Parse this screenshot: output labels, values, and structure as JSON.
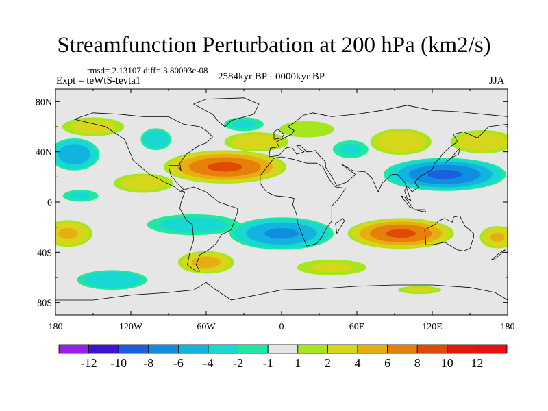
{
  "chart_data": {
    "type": "heatmap",
    "title": "Streamfunction Perturbation at 200 hPa (km2/s)",
    "stats": "rmsd= 2.13107 diff= 3.80093e-08",
    "experiment": "Expt = teWtS-tevta1",
    "period": "2584kyr BP - 0000kyr BP",
    "season": "JJA",
    "xlim": [
      -180,
      180
    ],
    "ylim": [
      -90,
      90
    ],
    "x_ticks": [
      {
        "value": -180,
        "label": "180"
      },
      {
        "value": -120,
        "label": "120W"
      },
      {
        "value": -60,
        "label": "60W"
      },
      {
        "value": 0,
        "label": "0"
      },
      {
        "value": 60,
        "label": "60E"
      },
      {
        "value": 120,
        "label": "120E"
      },
      {
        "value": 180,
        "label": "180"
      }
    ],
    "y_ticks": [
      {
        "value": 80,
        "label": "80N"
      },
      {
        "value": 40,
        "label": "40N"
      },
      {
        "value": 0,
        "label": "0"
      },
      {
        "value": -40,
        "label": "40S"
      },
      {
        "value": -80,
        "label": "80S"
      }
    ],
    "levels": [
      -12,
      -10,
      -8,
      -6,
      -4,
      -2,
      -1,
      1,
      2,
      4,
      6,
      8,
      10,
      12
    ],
    "level_labels": [
      "-12",
      "-10",
      "-8",
      "-6",
      "-4",
      "-2",
      "-1",
      "1",
      "2",
      "4",
      "6",
      "8",
      "10",
      "12"
    ],
    "colors": [
      "#9a1fef",
      "#3c14d0",
      "#1a5fe0",
      "#0f8ee0",
      "#13b3e0",
      "#18d8d2",
      "#20e8a0",
      "#e6e6e6",
      "#a6e61c",
      "#d6d61a",
      "#e6ae10",
      "#e6800a",
      "#e04a06",
      "#e01a06",
      "#e81010"
    ],
    "fields": [
      {
        "lon": -150,
        "lat": 60,
        "value": 2.5,
        "rlon": 30,
        "rlat": 9
      },
      {
        "lon": -100,
        "lat": 50,
        "value": -3.5,
        "rlon": 14,
        "rlat": 10
      },
      {
        "lon": -165,
        "lat": 38,
        "value": -5.5,
        "rlon": 22,
        "rlat": 14
      },
      {
        "lon": -45,
        "lat": 28,
        "value": 8.0,
        "rlon": 52,
        "rlat": 14
      },
      {
        "lon": -110,
        "lat": 15,
        "value": 3.0,
        "rlon": 28,
        "rlat": 9
      },
      {
        "lon": -20,
        "lat": 48,
        "value": 3.0,
        "rlon": 30,
        "rlat": 9
      },
      {
        "lon": -30,
        "lat": 62,
        "value": -2.0,
        "rlon": 20,
        "rlat": 7
      },
      {
        "lon": 20,
        "lat": 58,
        "value": 1.5,
        "rlon": 30,
        "rlat": 9
      },
      {
        "lon": 55,
        "lat": 42,
        "value": -2.0,
        "rlon": 18,
        "rlat": 9
      },
      {
        "lon": 95,
        "lat": 48,
        "value": 3.5,
        "rlon": 28,
        "rlat": 12
      },
      {
        "lon": 160,
        "lat": 48,
        "value": 3.0,
        "rlon": 30,
        "rlat": 11
      },
      {
        "lon": 130,
        "lat": 22,
        "value": -8.0,
        "rlon": 52,
        "rlat": 14
      },
      {
        "lon": -160,
        "lat": 5,
        "value": -2.0,
        "rlon": 18,
        "rlat": 6
      },
      {
        "lon": -170,
        "lat": -25,
        "value": 4.0,
        "rlon": 22,
        "rlat": 12
      },
      {
        "lon": -70,
        "lat": -18,
        "value": -2.5,
        "rlon": 45,
        "rlat": 10
      },
      {
        "lon": 0,
        "lat": -25,
        "value": -6.0,
        "rlon": 45,
        "rlat": 14
      },
      {
        "lon": 95,
        "lat": -25,
        "value": 8.0,
        "rlon": 45,
        "rlat": 13
      },
      {
        "lon": 172,
        "lat": -28,
        "value": 4.0,
        "rlon": 16,
        "rlat": 10
      },
      {
        "lon": -135,
        "lat": -62,
        "value": -3.5,
        "rlon": 32,
        "rlat": 9
      },
      {
        "lon": -60,
        "lat": -48,
        "value": 4.5,
        "rlon": 25,
        "rlat": 10
      },
      {
        "lon": 40,
        "lat": -52,
        "value": 2.0,
        "rlon": 35,
        "rlat": 8
      },
      {
        "lon": 110,
        "lat": -70,
        "value": 2.0,
        "rlon": 22,
        "rlat": 4
      }
    ]
  }
}
